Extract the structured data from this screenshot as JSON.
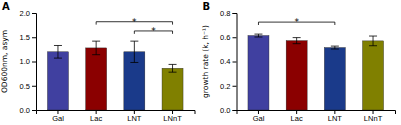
{
  "chart_data": [
    {
      "type": "bar",
      "title": "A",
      "categories": [
        "Gal",
        "Lac",
        "LNT",
        "LNnT"
      ],
      "values": [
        1.2,
        1.28,
        1.2,
        0.86
      ],
      "errors": [
        0.13,
        0.14,
        0.22,
        0.08
      ],
      "colors": [
        "#4040A0",
        "#8B0000",
        "#1A3A8A",
        "#808000"
      ],
      "ylabel": "OD600nm, asym",
      "ylim": [
        0,
        2.0
      ],
      "yticks": [
        {
          "value": 0.0,
          "label": "0.0"
        },
        0.5,
        {
          "value": 1.0,
          "label": "1.0"
        },
        1.5,
        {
          "value": 2.0,
          "label": "2.0"
        }
      ],
      "grid": false,
      "annotations": [
        {
          "x1": "Lac",
          "x2": "LNnT",
          "y": 1.82,
          "label": "*"
        },
        {
          "x1": "LNT",
          "x2": "LNnT",
          "y": 1.63,
          "label": "*"
        }
      ]
    },
    {
      "type": "bar",
      "title": "B",
      "categories": [
        "Gal",
        "Lac",
        "LNT",
        "LNnT"
      ],
      "values": [
        0.614,
        0.572,
        0.515,
        0.57
      ],
      "errors": [
        0.012,
        0.025,
        0.012,
        0.04
      ],
      "colors": [
        "#4040A0",
        "#8B0000",
        "#1A3A8A",
        "#808000"
      ],
      "ylabel": "growth rate (k, h⁻¹)",
      "ylim": [
        0,
        0.8
      ],
      "yticks": [
        {
          "value": 0.0,
          "label": "0.0"
        },
        0.2,
        0.4,
        0.6,
        0.8
      ],
      "grid": false,
      "annotations": [
        {
          "x1": "Gal",
          "x2": "LNT",
          "y": 0.725,
          "label": "*"
        }
      ]
    }
  ]
}
